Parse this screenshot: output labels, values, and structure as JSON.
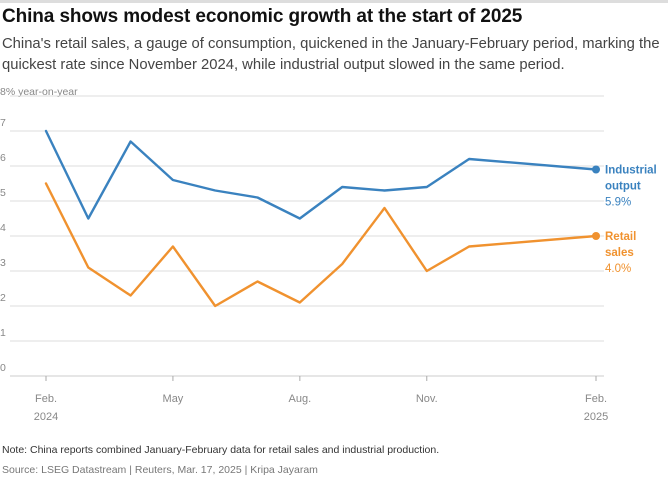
{
  "title": "China shows modest economic growth at the start of 2025",
  "subtitle": "China's retail sales, a gauge of consumption, quickened in the January-February period, marking the quickest rate since November 2024, while industrial output slowed in the same period.",
  "note": "Note: China reports combined January-February data for retail sales and industrial production.",
  "source": "Source: LSEG Datastream | Reuters, Mar. 17, 2025 | Kripa Jayaram",
  "colors": {
    "industrial": "#3a82bf",
    "retail": "#f0922f",
    "grid": "#dcdcdc",
    "axis_text": "#888888"
  },
  "chart_data": {
    "type": "line",
    "ylabel": "8% year-on-year",
    "ylim": [
      0,
      8
    ],
    "yticks": [
      0,
      1,
      2,
      3,
      4,
      5,
      6,
      7
    ],
    "x": [
      "2024-02",
      "2024-03",
      "2024-04",
      "2024-05",
      "2024-06",
      "2024-07",
      "2024-08",
      "2024-09",
      "2024-10",
      "2024-11",
      "2024-12",
      "2025-02"
    ],
    "xticks": [
      {
        "index": 0,
        "line1": "Feb.",
        "line2": "2024"
      },
      {
        "index": 3,
        "line1": "May",
        "line2": ""
      },
      {
        "index": 6,
        "line1": "Aug.",
        "line2": ""
      },
      {
        "index": 9,
        "line1": "Nov.",
        "line2": ""
      },
      {
        "index": 13,
        "line1": "Feb.",
        "line2": "2025"
      }
    ],
    "x_positions": [
      0,
      1,
      2,
      3,
      4,
      5,
      6,
      7,
      8,
      9,
      10,
      13
    ],
    "x_range": [
      0,
      13
    ],
    "grid": true,
    "series": [
      {
        "name": "Industrial output",
        "label_lines": [
          "Industrial",
          "output"
        ],
        "end_value_label": "5.9%",
        "color_key": "industrial",
        "values": [
          7.0,
          4.5,
          6.7,
          5.6,
          5.3,
          5.1,
          4.5,
          5.4,
          5.3,
          5.4,
          6.2,
          5.9
        ]
      },
      {
        "name": "Retail sales",
        "label_lines": [
          "Retail",
          "sales"
        ],
        "end_value_label": "4.0%",
        "color_key": "retail",
        "values": [
          5.5,
          3.1,
          2.3,
          3.7,
          2.0,
          2.7,
          2.1,
          3.2,
          4.8,
          3.0,
          3.7,
          4.0
        ]
      }
    ]
  }
}
